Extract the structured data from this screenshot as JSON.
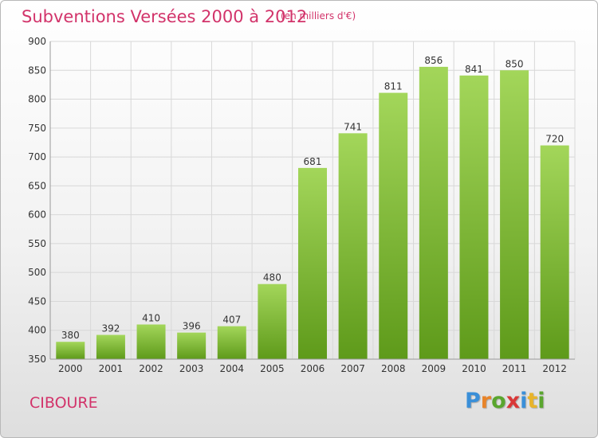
{
  "header": {
    "title": "Subventions Versées 2000 à 2012",
    "subtitle": "(en milliers d'€)"
  },
  "commune": "CIBOURE",
  "logo": {
    "letters": [
      "P",
      "r",
      "o",
      "x",
      "i",
      "t",
      "i"
    ],
    "colors": [
      "#3a8fd8",
      "#e8842a",
      "#5aa62e",
      "#d93838",
      "#3a8fd8",
      "#e8b42a",
      "#5aa62e"
    ]
  },
  "colors": {
    "bar_top": "#a3d65a",
    "bar_bottom": "#5e9a1a",
    "grid": "#d8d8d8",
    "title": "#d2336a"
  },
  "chart_data": {
    "type": "bar",
    "title": "Subventions Versées 2000 à 2012",
    "subtitle": "(en milliers d'€)",
    "categories": [
      "2000",
      "2001",
      "2002",
      "2003",
      "2004",
      "2005",
      "2006",
      "2007",
      "2008",
      "2009",
      "2010",
      "2011",
      "2012"
    ],
    "values": [
      380,
      392,
      410,
      396,
      407,
      480,
      681,
      741,
      811,
      856,
      841,
      850,
      720
    ],
    "ylim": [
      350,
      900
    ],
    "yticks": [
      350,
      400,
      450,
      500,
      550,
      600,
      650,
      700,
      750,
      800,
      850,
      900
    ],
    "grid": true,
    "xlabel": "",
    "ylabel": ""
  }
}
